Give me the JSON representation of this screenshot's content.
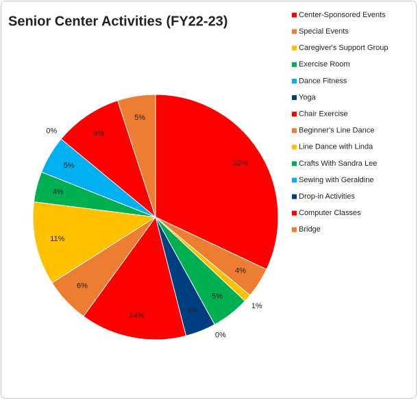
{
  "chart_data": {
    "type": "pie",
    "title": "Senior Center Activities (FY22-23)",
    "categories": [
      "Center-Sponsored Events",
      "Special Events",
      "Caregiver's Support Group",
      "Exercise Room",
      "Dance Fitness",
      "Yoga",
      "Chair Exercise",
      "Beginner's Line Dance",
      "Line Dance with Linda",
      "Crafts With Sandra Lee",
      "Sewing with Geraldine",
      "Drop-in Activities",
      "Computer Classes",
      "Bridge"
    ],
    "values": [
      32,
      4,
      1,
      5,
      0,
      4,
      14,
      6,
      11,
      4,
      5,
      0,
      9,
      5
    ],
    "value_labels": [
      "32%",
      "4%",
      "1%",
      "5%",
      "0%",
      "4%",
      "14%",
      "6%",
      "11%",
      "4%",
      "5%",
      "0%",
      "9%",
      "5%"
    ],
    "colors": [
      "#ff0000",
      "#ed7d31",
      "#ffc000",
      "#00b050",
      "#00b0f0",
      "#003f7f",
      "#ff0000",
      "#ed7d31",
      "#ffc000",
      "#00b050",
      "#00b0f0",
      "#003f7f",
      "#ff0000",
      "#ed7d31"
    ],
    "legend": "right"
  }
}
